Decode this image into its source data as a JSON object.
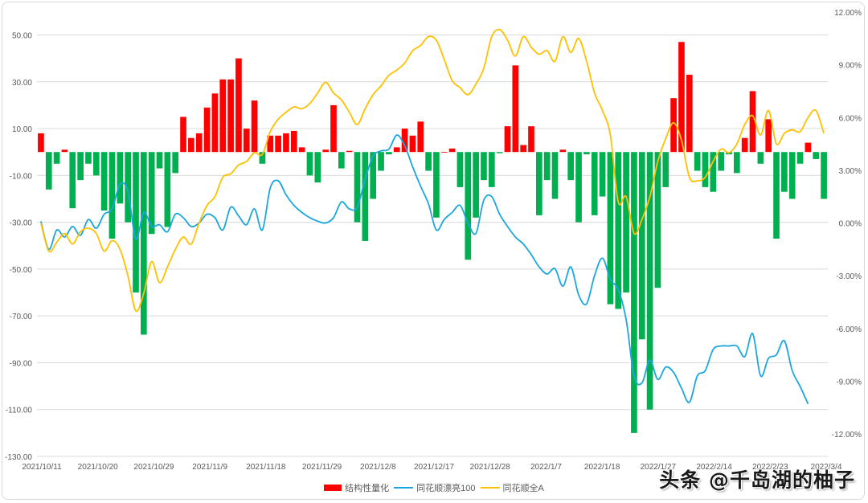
{
  "chart_data": {
    "type": "bar+line",
    "title": "",
    "xlabel": "",
    "ylabel": "",
    "ylim": [
      -130,
      60
    ],
    "y2lim": [
      -12,
      12
    ],
    "grid": true,
    "legend_position": "bottom",
    "left_axis_ticks": [
      "50.00",
      "30.00",
      "10.00",
      "-10.00",
      "-30.00",
      "-50.00",
      "-70.00",
      "-90.00",
      "-110.00",
      "-130.00"
    ],
    "right_axis_ticks": [
      "12.00%",
      "9.00%",
      "6.00%",
      "3.00%",
      "0.00%",
      "-3.00%",
      "-6.00%",
      "-9.00%",
      "-12.00%"
    ],
    "x_tick_labels": [
      "2021/10/11",
      "2021/10/20",
      "2021/10/29",
      "2021/11/9",
      "2021/11/18",
      "2021/11/29",
      "2021/12/8",
      "2021/12/17",
      "2021/12/28",
      "2022/1/7",
      "2022/1/18",
      "2022/1/27",
      "2022/2/14",
      "2022/2/23",
      "2022/3/4"
    ],
    "series": [
      {
        "name": "结构性量化",
        "type": "bar",
        "axis": "left",
        "color_positive": "#ff0000",
        "color_negative": "#00b050",
        "values": [
          8,
          -16,
          -5,
          1,
          -24,
          -12,
          -5,
          -10,
          -25,
          -37,
          -22,
          -30,
          -60,
          -78,
          -35,
          -7,
          -32,
          -9,
          15,
          6,
          8,
          19,
          25,
          31,
          31,
          40,
          10,
          22,
          -5,
          7,
          7,
          8,
          9,
          2,
          -10,
          -13,
          1,
          20,
          -7,
          0.5,
          -30,
          -38,
          -20,
          -8,
          -1,
          2,
          10,
          7,
          13,
          -8,
          -28,
          0,
          1.5,
          -15,
          -46,
          -28,
          -12,
          -15,
          -0.5,
          11,
          37,
          3,
          11,
          -27,
          -12,
          -20,
          1,
          -12,
          -30,
          -1,
          -27,
          -19,
          -65,
          -67,
          -60,
          -120,
          -80,
          -110,
          -58,
          -15,
          23,
          47,
          33,
          -8,
          -15,
          -17,
          -8,
          -1,
          -9,
          6,
          26,
          -5,
          14,
          -37,
          -17,
          -20,
          -5,
          4,
          -3,
          -20
        ]
      },
      {
        "name": "同花顺漂亮100",
        "type": "line",
        "axis": "right",
        "color": "#1aa7e0",
        "values": [
          0.1,
          -1.5,
          -0.4,
          -0.8,
          -0.2,
          -0.7,
          0.2,
          -0.3,
          0.5,
          0.8,
          2.2,
          1.8,
          -0.9,
          0.6,
          -0.2,
          -0.1,
          -0.5,
          0.5,
          0.3,
          -0.2,
          0.0,
          0.5,
          0.3,
          -0.4,
          0.9,
          0.4,
          -0.1,
          0.8,
          -0.4,
          2.0,
          2.4,
          1.6,
          1.0,
          0.6,
          0.3,
          0.1,
          0.0,
          0.3,
          1.2,
          0.8,
          0.9,
          2.5,
          3.8,
          4.1,
          4.2,
          5.0,
          4.4,
          3.2,
          2.1,
          1.1,
          -0.4,
          0.2,
          0.6,
          1.0,
          0.0,
          -0.6,
          1.3,
          1.5,
          0.5,
          -0.2,
          -0.8,
          -1.2,
          -1.8,
          -2.5,
          -2.9,
          -2.6,
          -3.6,
          -2.5,
          -4.1,
          -4.6,
          -3.0,
          -2.0,
          -3.2,
          -3.8,
          -5.5,
          -8.7,
          -9.1,
          -7.8,
          -8.9,
          -8.2,
          -8.5,
          -9.4,
          -10.2,
          -8.7,
          -8.4,
          -7.2,
          -7.0,
          -7.0,
          -7.0,
          -7.6,
          -6.3,
          -8.7,
          -7.7,
          -7.5,
          -6.7,
          -8.4,
          -9.3,
          -10.3
        ]
      },
      {
        "name": "同花顺全A",
        "type": "line",
        "axis": "right",
        "color": "#ffc000",
        "values": [
          0.0,
          -1.6,
          -1.1,
          -0.6,
          -1.2,
          -0.5,
          -0.3,
          -0.6,
          -1.6,
          -1.0,
          -1.5,
          -3.0,
          -5.0,
          -4.0,
          -2.2,
          -3.4,
          -2.5,
          -1.5,
          -0.8,
          -1.2,
          0.0,
          1.0,
          1.5,
          2.6,
          2.8,
          3.3,
          3.5,
          4.0,
          3.9,
          5.2,
          5.9,
          6.3,
          6.6,
          6.5,
          6.8,
          7.4,
          8.0,
          7.4,
          7.0,
          6.3,
          5.6,
          6.5,
          7.3,
          7.8,
          8.4,
          8.7,
          9.1,
          9.8,
          10.1,
          10.6,
          10.4,
          9.3,
          8.1,
          7.7,
          7.3,
          7.9,
          8.8,
          10.6,
          11.0,
          10.4,
          9.5,
          10.6,
          10.0,
          9.6,
          9.8,
          9.2,
          10.6,
          9.7,
          10.5,
          9.2,
          7.4,
          6.4,
          5.0,
          1.2,
          1.5,
          -0.6,
          0.2,
          1.5,
          3.5,
          4.8,
          5.7,
          4.7,
          2.6,
          2.4,
          2.6,
          3.5,
          4.2,
          4.0,
          4.5,
          5.6,
          6.1,
          5.0,
          6.4,
          4.5,
          5.1,
          5.3,
          5.2,
          6.0,
          6.4,
          5.1
        ]
      }
    ]
  },
  "legend": {
    "items": [
      {
        "label": "结构性量化",
        "color": "#ff0000"
      },
      {
        "label": "同花顺漂亮100",
        "color": "#1aa7e0"
      },
      {
        "label": "同花顺全A",
        "color": "#ffc000"
      }
    ]
  },
  "watermark": "头条 @千岛湖的柚子"
}
